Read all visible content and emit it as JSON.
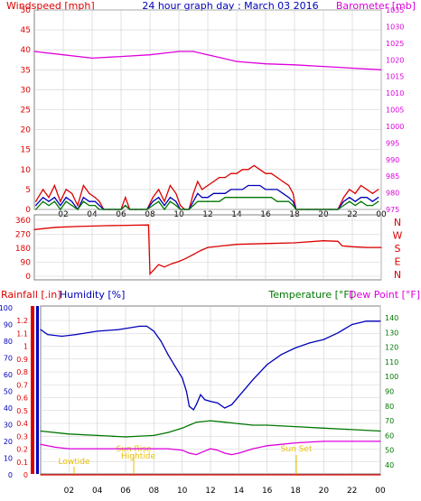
{
  "header": {
    "left_title": "Windspeed [mph]",
    "center_title": "24 hour graph day : March 03 2016",
    "right_title": "Barometer [mb]"
  },
  "colors": {
    "red": "#dd0000",
    "blue": "#0000bb",
    "green": "#007700",
    "magenta": "#dd00dd",
    "yellow": "#e8c000",
    "grid": "#cfcfcf",
    "axis": "#000000",
    "frame": "#808080"
  },
  "x_ticks": [
    "02",
    "04",
    "06",
    "08",
    "10",
    "12",
    "14",
    "16",
    "18",
    "20",
    "22",
    "00"
  ],
  "chart_data": [
    {
      "type": "line",
      "title": "24 hour graph day : March 03 2016",
      "x_unit": "hour",
      "left_axis": {
        "label": "Windspeed [mph]",
        "range": [
          0,
          50
        ],
        "ticks": [
          0,
          5,
          10,
          15,
          20,
          25,
          30,
          35,
          40,
          45,
          50
        ]
      },
      "right_axis": {
        "label": "Barometer [mb]",
        "range": [
          975,
          1035
        ],
        "ticks": [
          975,
          980,
          985,
          990,
          995,
          1000,
          1005,
          1010,
          1015,
          1020,
          1025,
          1030,
          1035
        ]
      },
      "grid": true,
      "series": [
        {
          "axis": "left",
          "color": "#dd0000",
          "x": [
            0.1,
            0.6,
            1.0,
            1.4,
            1.8,
            2.2,
            2.6,
            3.0,
            3.4,
            3.8,
            4.2,
            4.5,
            4.8,
            5.2,
            5.6,
            6.0,
            6.3,
            6.6,
            7.0,
            7.4,
            7.8,
            8.2,
            8.6,
            9.0,
            9.4,
            9.8,
            10.1,
            10.4,
            10.7,
            11.0,
            11.3,
            11.6,
            12.0,
            12.4,
            12.8,
            13.2,
            13.6,
            14.0,
            14.4,
            14.8,
            15.2,
            15.6,
            16.0,
            16.4,
            16.8,
            17.2,
            17.6,
            17.9,
            18.1,
            18.5,
            19.0,
            19.5,
            20.0,
            20.5,
            21.0,
            21.4,
            21.8,
            22.2,
            22.6,
            23.0,
            23.4,
            23.8
          ],
          "y": [
            2,
            5,
            3,
            6,
            2,
            5,
            4,
            1,
            6,
            4,
            3,
            2,
            0,
            0,
            0,
            0,
            3,
            0,
            0,
            0,
            0,
            3,
            5,
            2,
            6,
            4,
            1,
            0,
            0,
            4,
            7,
            5,
            6,
            7,
            8,
            8,
            9,
            9,
            10,
            10,
            11,
            10,
            9,
            9,
            8,
            7,
            6,
            4,
            0,
            0,
            0,
            0,
            0,
            0,
            0,
            3,
            5,
            4,
            6,
            5,
            4,
            5
          ]
        },
        {
          "axis": "left",
          "color": "#0000bb",
          "x": [
            0.1,
            0.6,
            1.0,
            1.4,
            1.8,
            2.2,
            2.6,
            3.0,
            3.4,
            3.8,
            4.2,
            4.5,
            4.8,
            5.2,
            5.6,
            6.0,
            6.3,
            6.6,
            7.0,
            7.4,
            7.8,
            8.2,
            8.6,
            9.0,
            9.4,
            9.8,
            10.1,
            10.4,
            10.7,
            11.0,
            11.3,
            11.6,
            12.0,
            12.4,
            12.8,
            13.2,
            13.6,
            14.0,
            14.4,
            14.8,
            15.2,
            15.6,
            16.0,
            16.4,
            16.8,
            17.2,
            17.6,
            17.9,
            18.1,
            18.5,
            19.0,
            19.5,
            20.0,
            20.5,
            21.0,
            21.4,
            21.8,
            22.2,
            22.6,
            23.0,
            23.4,
            23.8
          ],
          "y": [
            1,
            3,
            2,
            3,
            1,
            3,
            2,
            0,
            3,
            2,
            2,
            1,
            0,
            0,
            0,
            0,
            1,
            0,
            0,
            0,
            0,
            2,
            3,
            1,
            3,
            2,
            0,
            0,
            0,
            2,
            4,
            3,
            3,
            4,
            4,
            4,
            5,
            5,
            5,
            6,
            6,
            6,
            5,
            5,
            5,
            4,
            3,
            2,
            0,
            0,
            0,
            0,
            0,
            0,
            0,
            2,
            3,
            2,
            3,
            3,
            2,
            3
          ]
        },
        {
          "axis": "left",
          "color": "#007700",
          "x": [
            0.1,
            0.6,
            1.0,
            1.4,
            1.8,
            2.2,
            2.6,
            3.0,
            3.4,
            3.8,
            4.2,
            4.5,
            4.8,
            5.2,
            5.6,
            6.0,
            6.3,
            6.6,
            7.0,
            7.4,
            7.8,
            8.2,
            8.6,
            9.0,
            9.4,
            9.8,
            10.1,
            10.4,
            10.7,
            11.0,
            11.3,
            11.6,
            12.0,
            12.4,
            12.8,
            13.2,
            13.6,
            14.0,
            14.4,
            14.8,
            15.2,
            15.6,
            16.0,
            16.4,
            16.8,
            17.2,
            17.6,
            17.9,
            18.1,
            18.5,
            19.0,
            19.5,
            20.0,
            20.5,
            21.0,
            21.4,
            21.8,
            22.2,
            22.6,
            23.0,
            23.4,
            23.8
          ],
          "y": [
            0,
            2,
            1,
            2,
            0,
            2,
            1,
            0,
            2,
            1,
            1,
            0,
            0,
            0,
            0,
            0,
            1,
            0,
            0,
            0,
            0,
            1,
            2,
            0,
            2,
            1,
            0,
            0,
            0,
            1,
            2,
            2,
            2,
            2,
            2,
            3,
            3,
            3,
            3,
            3,
            3,
            3,
            3,
            3,
            2,
            2,
            2,
            1,
            0,
            0,
            0,
            0,
            0,
            0,
            0,
            1,
            2,
            1,
            2,
            1,
            1,
            2
          ]
        },
        {
          "axis": "right",
          "color": "#dd00dd",
          "x": [
            0,
            2,
            4,
            6,
            8,
            9,
            10,
            11,
            12,
            13,
            14,
            16,
            18,
            20,
            22,
            24
          ],
          "y": [
            1022.5,
            1021.5,
            1020.5,
            1021,
            1021.5,
            1022,
            1022.5,
            1022.5,
            1021.5,
            1020.5,
            1019.5,
            1018.8,
            1018.5,
            1018,
            1017.5,
            1017
          ]
        }
      ]
    },
    {
      "type": "line",
      "x_unit": "hour",
      "left_axis": {
        "range": [
          0,
          360
        ],
        "ticks": [
          0,
          90,
          180,
          270,
          360
        ]
      },
      "right_axis": {
        "ticks": [
          "N",
          "W",
          "S",
          "E",
          "N"
        ]
      },
      "grid": true,
      "series": [
        {
          "axis": "left",
          "color": "#dd0000",
          "x": [
            0,
            1.5,
            3,
            5,
            7.9,
            8.0,
            8.3,
            8.6,
            9.0,
            9.5,
            10.0,
            10.5,
            11.0,
            11.5,
            12.0,
            13.0,
            14.0,
            16.0,
            18.0,
            20.0,
            21.0,
            21.3,
            22.0,
            23.0,
            24.0
          ],
          "y": [
            300,
            315,
            320,
            325,
            330,
            15,
            45,
            75,
            60,
            80,
            95,
            115,
            140,
            165,
            185,
            195,
            205,
            210,
            215,
            228,
            225,
            195,
            190,
            185,
            185
          ]
        }
      ]
    },
    {
      "type": "line",
      "x_unit": "hour",
      "axes": [
        {
          "label": "Rainfall [.in]",
          "ticks": [
            0,
            0.1,
            0.2,
            0.3,
            0.4,
            0.5,
            0.6,
            0.7,
            0.8,
            0.9,
            1,
            1.1,
            1.2
          ]
        },
        {
          "label": "Humidity [%]",
          "ticks": [
            0,
            10,
            20,
            30,
            40,
            50,
            60,
            70,
            80,
            90,
            100
          ]
        },
        {
          "label": "Temperature [°F]",
          "ticks": [
            40,
            50,
            60,
            70,
            80,
            90,
            100,
            110,
            120,
            130,
            140
          ]
        },
        {
          "label": "Dew Point [°F]"
        }
      ],
      "grid": true,
      "annotations": [
        "Lowtide",
        "Sun Rise",
        "Hightide",
        "Sun Set"
      ],
      "series": [
        {
          "axis": "Humidity [%]",
          "color": "#0000bb",
          "x": [
            0,
            0.5,
            1.5,
            2.5,
            4,
            5.5,
            7,
            7.5,
            8.0,
            8.5,
            9.0,
            9.5,
            10.0,
            10.3,
            10.5,
            10.8,
            11.0,
            11.3,
            11.6,
            12.0,
            12.5,
            13.0,
            13.5,
            14.0,
            14.5,
            15.0,
            16.0,
            17.0,
            18.0,
            19.0,
            20.0,
            21.0,
            22.0,
            23.0,
            24.0
          ],
          "y": [
            87,
            84,
            83,
            84,
            86,
            87,
            89,
            89,
            86,
            80,
            72,
            65,
            58,
            50,
            41,
            39,
            42,
            48,
            45,
            44,
            43,
            40,
            42,
            47,
            52,
            57,
            66,
            72,
            76,
            79,
            81,
            85,
            90,
            92,
            92
          ]
        },
        {
          "axis": "Temperature [°F]",
          "color": "#007700",
          "x": [
            0,
            2,
            4,
            6,
            8,
            9,
            10,
            10.5,
            11,
            12,
            13,
            14,
            15,
            16,
            18,
            20,
            22,
            24
          ],
          "y": [
            63,
            61,
            60,
            59,
            60,
            62,
            65,
            67,
            69,
            70,
            69,
            68,
            67,
            67,
            66,
            65,
            64,
            63
          ]
        },
        {
          "axis": "Temperature [°F]",
          "color": "#dd00dd",
          "x": [
            0,
            1,
            2,
            4,
            6,
            8,
            9,
            10,
            10.5,
            11,
            11.5,
            12,
            12.5,
            13,
            13.5,
            14,
            15,
            16,
            18,
            20,
            22,
            24
          ],
          "y": [
            54,
            52,
            51,
            51,
            51,
            51,
            51,
            50,
            48,
            47,
            49,
            51,
            50,
            48,
            47,
            48,
            51,
            53,
            55,
            56,
            56,
            56
          ]
        },
        {
          "axis": "Rainfall [.in]",
          "color": "#dd0000",
          "x": [
            0,
            24
          ],
          "y": [
            0,
            0
          ]
        }
      ]
    }
  ]
}
